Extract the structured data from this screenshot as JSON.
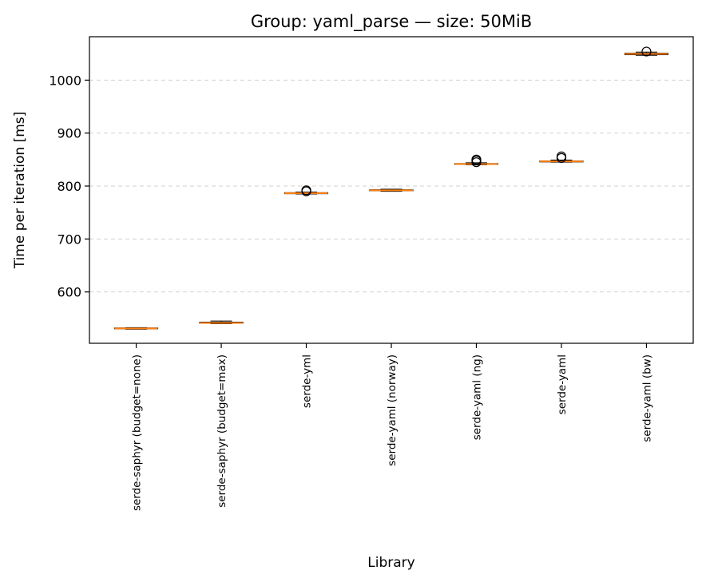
{
  "chart_data": {
    "type": "box",
    "title": "Group: yaml_parse — size: 50MiB",
    "xlabel": "Library",
    "ylabel": "Time per iteration [ms]",
    "ylim": [
      503,
      1082
    ],
    "yticks": [
      600,
      700,
      800,
      900,
      1000
    ],
    "grid": "y-dashed",
    "categories": [
      "serde-saphyr (budget=none)",
      "serde-saphyr (budget=max)",
      "serde-yml",
      "serde-yaml (norway)",
      "serde-yaml (ng)",
      "serde-yaml",
      "serde-yaml (bw)"
    ],
    "boxes": [
      {
        "whislo": 529.5,
        "q1": 530.2,
        "med": 531.0,
        "q3": 532.0,
        "whishi": 532.5,
        "fliers": []
      },
      {
        "whislo": 540.0,
        "q1": 540.8,
        "med": 541.5,
        "q3": 543.0,
        "whishi": 545.0,
        "fliers": []
      },
      {
        "whislo": 785.0,
        "q1": 785.5,
        "med": 786.5,
        "q3": 787.5,
        "whishi": 788.5,
        "fliers": [
          790,
          792
        ]
      },
      {
        "whislo": 790.0,
        "q1": 791.0,
        "med": 792.0,
        "q3": 793.0,
        "whishi": 794.0,
        "fliers": []
      },
      {
        "whislo": 840.0,
        "q1": 840.8,
        "med": 841.5,
        "q3": 842.5,
        "whishi": 844.0,
        "fliers": [
          845,
          848,
          850
        ]
      },
      {
        "whislo": 845.0,
        "q1": 845.5,
        "med": 846.5,
        "q3": 847.5,
        "whishi": 849.0,
        "fliers": [
          853,
          856
        ]
      },
      {
        "whislo": 1047.0,
        "q1": 1048.0,
        "med": 1049.5,
        "q3": 1051.0,
        "whishi": 1053.0,
        "fliers": [
          1054
        ]
      }
    ]
  }
}
